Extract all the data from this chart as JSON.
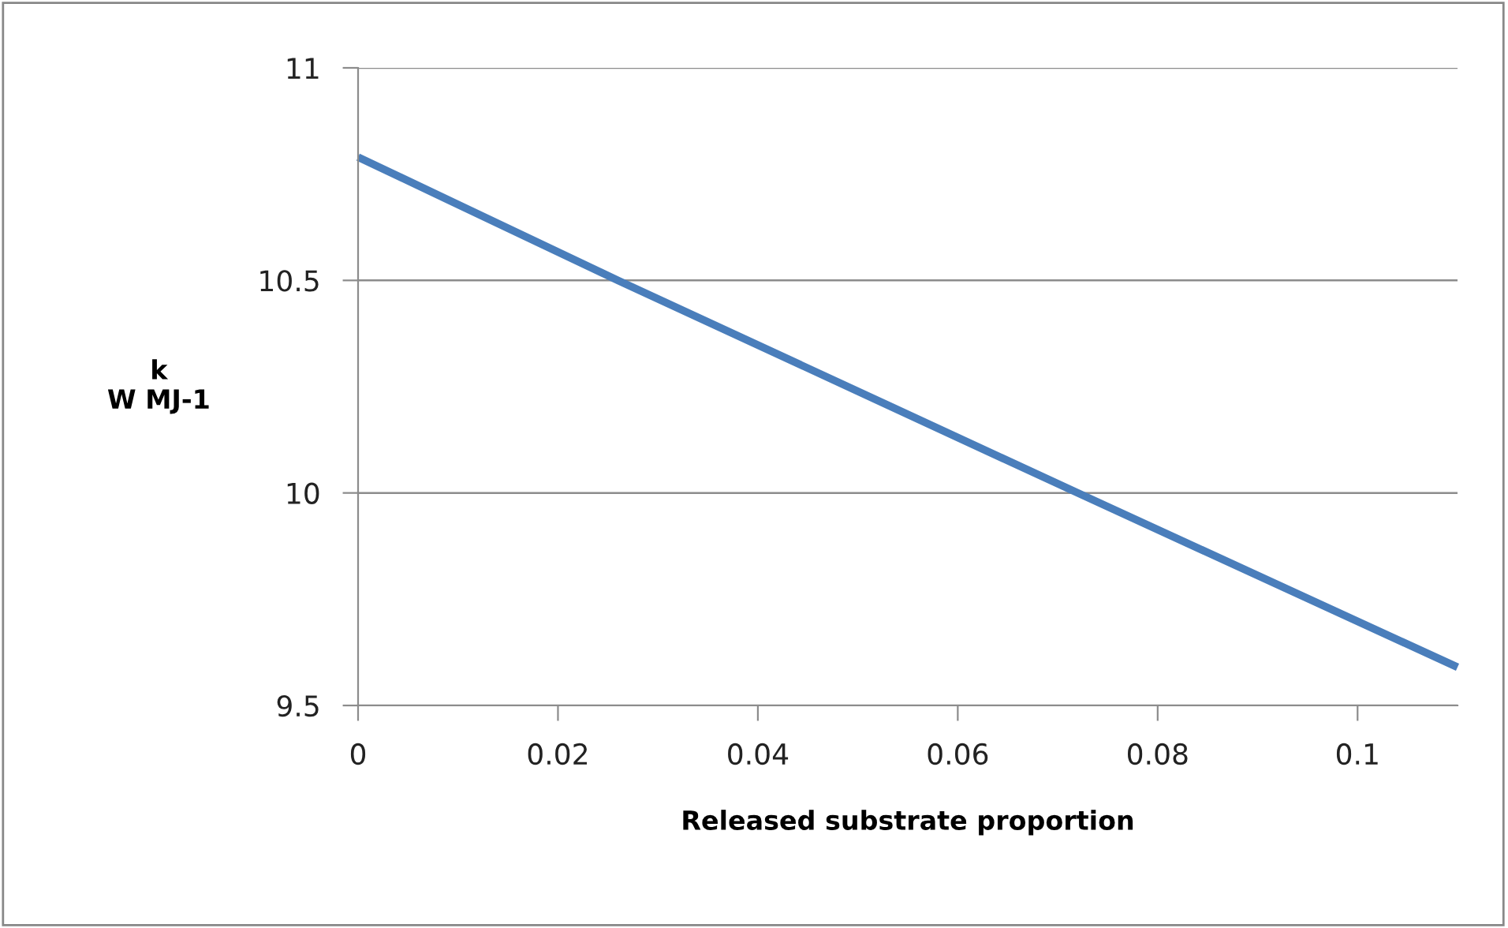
{
  "chart_data": {
    "type": "line",
    "xlabel": "Released substrate proportion",
    "ylabel": "k\nW MJ-1",
    "x": [
      0,
      0.026,
      0.072,
      0.11
    ],
    "series": [
      {
        "color": "#4a7ebb",
        "values": [
          10.79,
          10.5,
          10.0,
          9.59
        ]
      }
    ],
    "xlim": [
      0,
      0.11
    ],
    "xticks": [
      0,
      0.02,
      0.04,
      0.06,
      0.08,
      0.1
    ],
    "ylim": [
      9.5,
      11
    ],
    "yticks": [
      9.5,
      10,
      10.5,
      11
    ],
    "grid": "y",
    "legend": false,
    "marker": "none",
    "line_style": "solid"
  }
}
